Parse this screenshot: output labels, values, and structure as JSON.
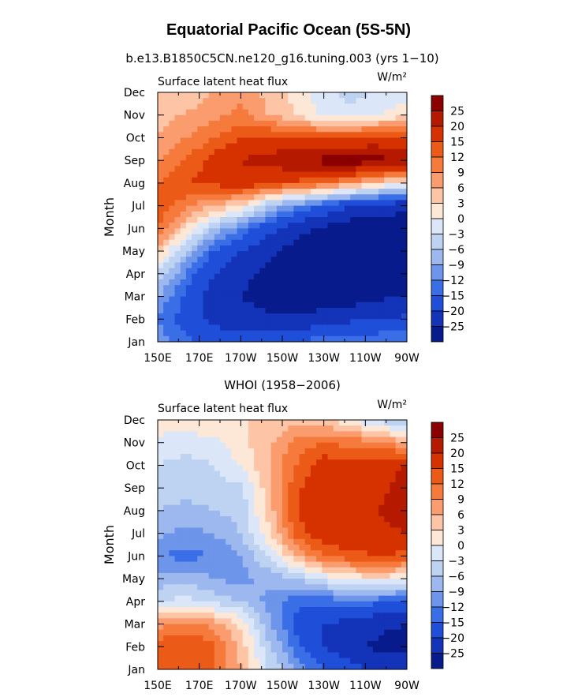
{
  "figure": {
    "title": "Equatorial Pacific Ocean (5S-5N)"
  },
  "colorbar": {
    "labels": [
      "25",
      "20",
      "15",
      "12",
      "9",
      "6",
      "3",
      "0",
      "−3",
      "−6",
      "−9",
      "−12",
      "−15",
      "−20",
      "−25"
    ],
    "colors": [
      "#8b0000",
      "#b51a00",
      "#d63200",
      "#ec5a18",
      "#f57a3c",
      "#fa9c6e",
      "#fdc4a6",
      "#fde8d8",
      "#dbe7f8",
      "#bed2f2",
      "#9cb8ee",
      "#6d95ea",
      "#3a6ee6",
      "#1f4fd9",
      "#1333b8",
      "#081b8c"
    ]
  },
  "chart_data": [
    {
      "type": "heatmap",
      "panel_title": "b.e13.B1850C5CN.ne120_g16.tuning.003 (yrs 1−10)",
      "left_string": "Surface latent heat flux",
      "units": "W/m²",
      "ylabel": "Month",
      "x_ticklabels": [
        "150E",
        "170E",
        "170W",
        "150W",
        "130W",
        "110W",
        "90W"
      ],
      "y_ticklabels": [
        "Jan",
        "Feb",
        "Mar",
        "Apr",
        "May",
        "Jun",
        "Jul",
        "Aug",
        "Sep",
        "Oct",
        "Nov",
        "Dec"
      ],
      "levels": [
        -25,
        -20,
        -15,
        -12,
        -9,
        -6,
        -3,
        0,
        3,
        6,
        9,
        12,
        15,
        20,
        25
      ],
      "xrange": [
        150,
        270
      ],
      "yrange": [
        1,
        12
      ],
      "values": [
        [
          -10,
          -12,
          -9,
          -3,
          4,
          12,
          15,
          12,
          9,
          6,
          5,
          3
        ],
        [
          -14,
          -17,
          -16,
          -12,
          -6,
          3,
          10,
          15,
          12,
          9,
          6,
          4
        ],
        [
          -17,
          -21,
          -22,
          -20,
          -15,
          -6,
          6,
          16,
          16,
          12,
          8,
          6
        ],
        [
          -18,
          -23,
          -25,
          -24,
          -20,
          -12,
          3,
          18,
          20,
          15,
          10,
          8
        ],
        [
          -17,
          -24,
          -27,
          -26,
          -24,
          -18,
          -6,
          16,
          22,
          16,
          6,
          5
        ],
        [
          -15,
          -24,
          -28,
          -29,
          -27,
          -23,
          -11,
          14,
          24,
          15,
          3,
          2
        ],
        [
          -13,
          -23,
          -28,
          -30,
          -29,
          -26,
          -16,
          12,
          27,
          14,
          -1,
          -2
        ],
        [
          -12,
          -21,
          -28,
          -30,
          -30,
          -28,
          -20,
          8,
          28,
          15,
          -2,
          -4
        ],
        [
          -12,
          -20,
          -26,
          -29,
          -29,
          -28,
          -22,
          4,
          27,
          16,
          0,
          -3
        ],
        [
          -12,
          -19,
          -25,
          -28,
          -29,
          -28,
          -24,
          0,
          24,
          15,
          2,
          -2
        ]
      ]
    },
    {
      "type": "heatmap",
      "panel_title": "WHOI (1958−2006)",
      "left_string": "Surface latent heat flux",
      "units": "W/m²",
      "ylabel": "Month",
      "x_ticklabels": [
        "150E",
        "170E",
        "170W",
        "150W",
        "130W",
        "110W",
        "90W"
      ],
      "y_ticklabels": [
        "Jan",
        "Feb",
        "Mar",
        "Apr",
        "May",
        "Jun",
        "Jul",
        "Aug",
        "Sep",
        "Oct",
        "Nov",
        "Dec"
      ],
      "levels": [
        -25,
        -20,
        -15,
        -12,
        -9,
        -6,
        -3,
        0,
        3,
        6,
        9,
        12,
        15,
        20,
        25
      ],
      "xrange": [
        150,
        270
      ],
      "yrange": [
        1,
        12
      ],
      "values": [
        [
          13,
          14,
          8,
          -3,
          -8,
          -12,
          -8,
          -6,
          -4,
          -3,
          -1,
          2
        ],
        [
          14,
          15,
          10,
          -2,
          -7,
          -13,
          -10,
          -7,
          -5,
          -4,
          -2,
          2
        ],
        [
          12,
          13,
          8,
          -4,
          -9,
          -12,
          -9,
          -6,
          -4,
          -3,
          -1,
          3
        ],
        [
          6,
          5,
          2,
          -6,
          -10,
          -9,
          -6,
          -5,
          -4,
          0,
          2,
          3
        ],
        [
          -3,
          -5,
          -8,
          -10,
          -8,
          -3,
          2,
          4,
          5,
          6,
          5,
          3
        ],
        [
          -9,
          -14,
          -16,
          -14,
          -6,
          6,
          13,
          15,
          14,
          12,
          10,
          5
        ],
        [
          -15,
          -20,
          -20,
          -14,
          -2,
          12,
          18,
          20,
          18,
          17,
          12,
          4
        ],
        [
          -18,
          -24,
          -22,
          -13,
          1,
          14,
          18,
          19,
          17,
          16,
          11,
          0
        ],
        [
          -21,
          -26,
          -24,
          -14,
          2,
          15,
          19,
          20,
          19,
          18,
          10,
          -4
        ],
        [
          -21,
          -27,
          -25,
          -16,
          0,
          14,
          20,
          22,
          22,
          20,
          6,
          -8
        ]
      ]
    }
  ]
}
